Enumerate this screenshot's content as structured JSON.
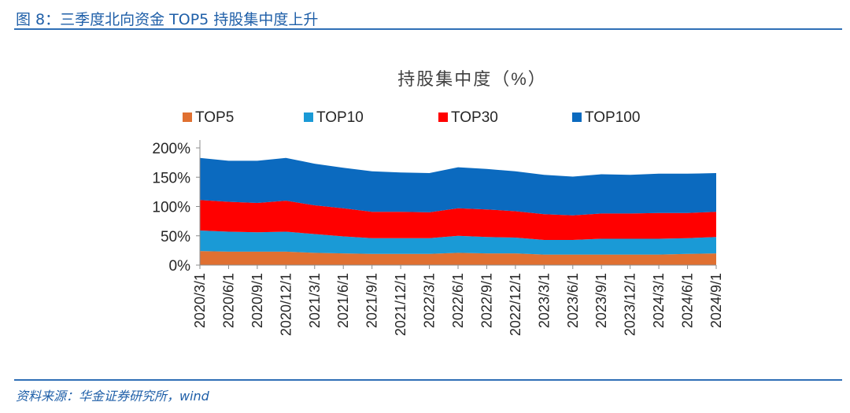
{
  "figure": {
    "title": "图 8：三季度北向资金 TOP5 持股集中度上升",
    "source": "资料来源：华金证券研究所，wind"
  },
  "chart_data": {
    "type": "area",
    "stacked": true,
    "title": "持股集中度（%）",
    "xlabel": "",
    "ylabel": "",
    "ylim": [
      0,
      200
    ],
    "yticks": [
      0,
      50,
      100,
      150,
      200
    ],
    "ytick_labels": [
      "0%",
      "50%",
      "100%",
      "150%",
      "200%"
    ],
    "grid": false,
    "legend_position": "top",
    "x": [
      "2020/3/1",
      "2020/6/1",
      "2020/9/1",
      "2020/12/1",
      "2021/3/1",
      "2021/6/1",
      "2021/9/1",
      "2021/12/1",
      "2022/3/1",
      "2022/6/1",
      "2022/9/1",
      "2022/12/1",
      "2023/3/1",
      "2023/6/1",
      "2023/9/1",
      "2023/12/1",
      "2024/3/1",
      "2024/6/1",
      "2024/9/1"
    ],
    "series": [
      {
        "name": "TOP5",
        "color": "#e07031",
        "values": [
          24,
          23,
          23,
          23,
          21,
          20,
          19,
          19,
          19,
          21,
          20,
          20,
          18,
          18,
          18,
          18,
          18,
          19,
          20
        ]
      },
      {
        "name": "TOP10",
        "color": "#1a9ad6",
        "values": [
          35,
          34,
          33,
          34,
          32,
          29,
          27,
          27,
          27,
          29,
          28,
          27,
          25,
          25,
          27,
          27,
          27,
          27,
          28
        ]
      },
      {
        "name": "TOP30",
        "color": "#ff0000",
        "values": [
          52,
          51,
          50,
          53,
          49,
          48,
          45,
          45,
          44,
          47,
          47,
          45,
          44,
          42,
          43,
          43,
          44,
          43,
          43
        ]
      },
      {
        "name": "TOP100",
        "color": "#0b6abf",
        "values": [
          72,
          70,
          72,
          73,
          71,
          69,
          69,
          67,
          67,
          70,
          69,
          68,
          67,
          66,
          67,
          66,
          67,
          67,
          66
        ]
      }
    ]
  }
}
